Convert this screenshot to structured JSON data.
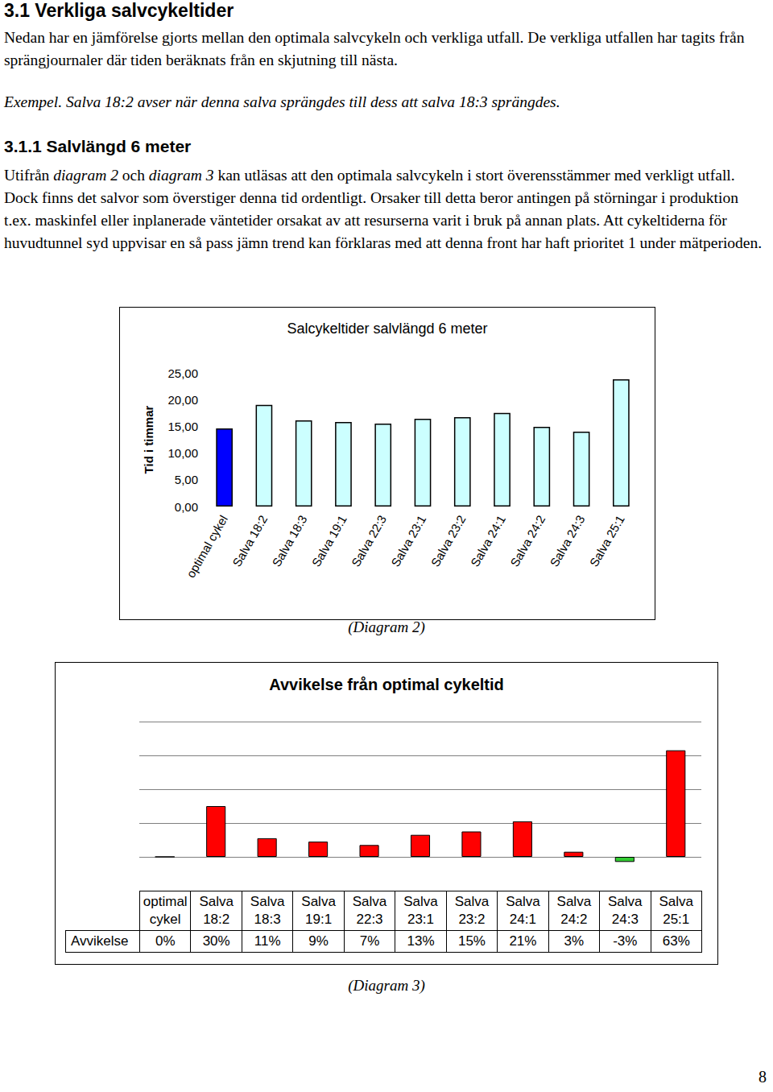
{
  "heading": "3.1 Verkliga salvcykeltider",
  "intro": "Nedan har en jämförelse gjorts mellan den optimala salvcykeln och verkliga utfall. De verkliga utfallen har tagits från sprängjournaler där tiden beräknats från en skjutning till nästa.",
  "example": "Exempel. Salva 18:2 avser när denna salva sprängdes till dess att salva 18:3 sprängdes.",
  "subheading": "3.1.1 Salvlängd 6 meter",
  "body": [
    {
      "text": "Utifrån ",
      "em": false
    },
    {
      "text": "diagram 2",
      "em": true
    },
    {
      "text": " och ",
      "em": false
    },
    {
      "text": "diagram 3",
      "em": true
    },
    {
      "text": " kan utläsas att den optimala salvcykeln i stort överensstämmer med verkligt utfall. Dock finns det salvor som överstiger denna tid ordentligt. Orsaker till detta beror antingen på störningar i produktion t.ex. maskinfel eller inplanerade väntetider orsakat av att resurserna varit i bruk på annan plats. Att cykeltiderna för huvudtunnel syd uppvisar en så pass jämn trend kan förklaras med att denna front har haft prioritet 1 under mätperioden.",
      "em": false
    }
  ],
  "chart_data": [
    {
      "type": "bar",
      "title": "Salcykeltider salvlängd 6 meter",
      "y_label": "Tid i timmar",
      "categories": [
        "optimal cykel",
        "Salva 18:2",
        "Salva 18:3",
        "Salva 19:1",
        "Salva 22:3",
        "Salva 23:1",
        "Salva 23:2",
        "Salva 24:1",
        "Salva 24:2",
        "Salva 24:3",
        "Salva 25:1"
      ],
      "values": [
        14.6,
        19.0,
        16.1,
        15.8,
        15.5,
        16.4,
        16.7,
        17.5,
        14.9,
        14.0,
        23.8
      ],
      "colors": [
        "#0000ff",
        "#ccffff",
        "#ccffff",
        "#ccffff",
        "#ccffff",
        "#ccffff",
        "#ccffff",
        "#ccffff",
        "#ccffff",
        "#ccffff",
        "#ccffff"
      ],
      "ylim": [
        0,
        25
      ],
      "yticks": [
        {
          "value": 0,
          "label": "0,00"
        },
        {
          "value": 5,
          "label": "5,00"
        },
        {
          "value": 10,
          "label": "10,00"
        },
        {
          "value": 15,
          "label": "15,00"
        },
        {
          "value": 20,
          "label": "20,00"
        },
        {
          "value": 25,
          "label": "25,00"
        }
      ],
      "grid": false
    },
    {
      "type": "bar",
      "title": "Avvikelse från optimal cykeltid",
      "categories": [
        "optimal cykel",
        "Salva 18:2",
        "Salva 18:3",
        "Salva 19:1",
        "Salva 22:3",
        "Salva 23:1",
        "Salva 23:2",
        "Salva 24:1",
        "Salva 24:2",
        "Salva 24:3",
        "Salva 25:1"
      ],
      "series": [
        {
          "name": "Avvikelse",
          "values": [
            0,
            30,
            11,
            9,
            7,
            13,
            15,
            21,
            3,
            -3,
            63
          ],
          "value_labels": [
            "0%",
            "30%",
            "11%",
            "9%",
            "7%",
            "13%",
            "15%",
            "21%",
            "3%",
            "-3%",
            "63%"
          ]
        }
      ],
      "colors": [
        "#ff0000",
        "#ff0000",
        "#ff0000",
        "#ff0000",
        "#ff0000",
        "#ff0000",
        "#ff0000",
        "#ff0000",
        "#ff0000",
        "#33cc33",
        "#ff0000"
      ],
      "ylim": [
        -20,
        80
      ],
      "yticks": [
        -20,
        0,
        20,
        40,
        60,
        80
      ],
      "grid": true,
      "tick_labels": false,
      "data_labels": true
    }
  ],
  "captions": [
    "(Diagram 2)",
    "(Diagram 3)"
  ],
  "page_number": "8"
}
